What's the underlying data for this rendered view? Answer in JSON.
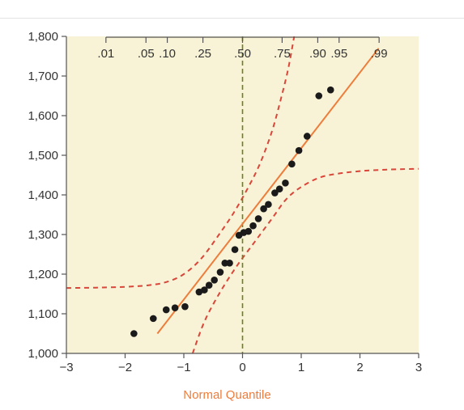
{
  "chart_data": {
    "type": "scatter",
    "title": "",
    "xlabel": "Normal Quantile",
    "ylabel": "",
    "xlim": [
      -3,
      3
    ],
    "ylim": [
      1000,
      1800
    ],
    "x_ticks": [
      -3,
      -2,
      -1,
      0,
      1,
      2,
      3
    ],
    "x_tick_labels": [
      "−3",
      "−2",
      "−1",
      "0",
      "1",
      "2",
      "3"
    ],
    "y_ticks": [
      1000,
      1100,
      1200,
      1300,
      1400,
      1500,
      1600,
      1700,
      1800
    ],
    "y_tick_labels": [
      "1,000",
      "1,100",
      "1,200",
      "1,300",
      "1,400",
      "1,500",
      "1,600",
      "1,700",
      "1,800"
    ],
    "top_axis": {
      "label_texts": [
        ".01",
        ".05",
        ".10",
        ".25",
        ".50",
        ".75",
        ".90",
        ".95",
        ".99"
      ],
      "probabilities": [
        0.01,
        0.05,
        0.1,
        0.25,
        0.5,
        0.75,
        0.9,
        0.95,
        0.99
      ]
    },
    "grid": false,
    "points": [
      {
        "x": -1.85,
        "y": 1050
      },
      {
        "x": -1.52,
        "y": 1088
      },
      {
        "x": -1.3,
        "y": 1110
      },
      {
        "x": -1.15,
        "y": 1115
      },
      {
        "x": -0.98,
        "y": 1118
      },
      {
        "x": -0.74,
        "y": 1155
      },
      {
        "x": -0.65,
        "y": 1160
      },
      {
        "x": -0.57,
        "y": 1172
      },
      {
        "x": -0.48,
        "y": 1185
      },
      {
        "x": -0.38,
        "y": 1205
      },
      {
        "x": -0.3,
        "y": 1228
      },
      {
        "x": -0.22,
        "y": 1228
      },
      {
        "x": -0.13,
        "y": 1262
      },
      {
        "x": -0.06,
        "y": 1298
      },
      {
        "x": 0.02,
        "y": 1305
      },
      {
        "x": 0.1,
        "y": 1308
      },
      {
        "x": 0.18,
        "y": 1322
      },
      {
        "x": 0.27,
        "y": 1340
      },
      {
        "x": 0.36,
        "y": 1365
      },
      {
        "x": 0.44,
        "y": 1376
      },
      {
        "x": 0.55,
        "y": 1405
      },
      {
        "x": 0.63,
        "y": 1415
      },
      {
        "x": 0.73,
        "y": 1430
      },
      {
        "x": 0.84,
        "y": 1478
      },
      {
        "x": 0.96,
        "y": 1512
      },
      {
        "x": 1.1,
        "y": 1548
      },
      {
        "x": 1.3,
        "y": 1650
      },
      {
        "x": 1.5,
        "y": 1665
      }
    ],
    "fit_line": {
      "x": [
        -1.45,
        2.32
      ],
      "y": [
        1050,
        1770
      ]
    },
    "confidence_band_upper": {
      "x": [
        -3.0,
        -2.5,
        -2.0,
        -1.6,
        -1.3,
        -1.0,
        -0.7,
        -0.4,
        -0.15,
        0.1,
        0.3,
        0.5,
        0.65,
        0.78,
        0.88
      ],
      "y": [
        1165,
        1166,
        1168,
        1172,
        1180,
        1200,
        1240,
        1300,
        1355,
        1420,
        1480,
        1560,
        1640,
        1720,
        1800
      ]
    },
    "confidence_band_lower": {
      "x": [
        -0.85,
        -0.65,
        -0.4,
        -0.1,
        0.2,
        0.5,
        0.75,
        1.0,
        1.3,
        1.6,
        2.0,
        2.5,
        3.0
      ],
      "y": [
        1000,
        1080,
        1150,
        1220,
        1280,
        1340,
        1390,
        1420,
        1443,
        1453,
        1460,
        1464,
        1466
      ]
    },
    "median_line_x": 0,
    "colors": {
      "plot_background": "#f8f3d6",
      "points": "#1a1a1a",
      "fit_line": "#ee7d3c",
      "confidence_band": "#d9463a",
      "median_line": "#6f7e22",
      "axis": "#555555",
      "xlabel": "#ee7d3c"
    }
  }
}
